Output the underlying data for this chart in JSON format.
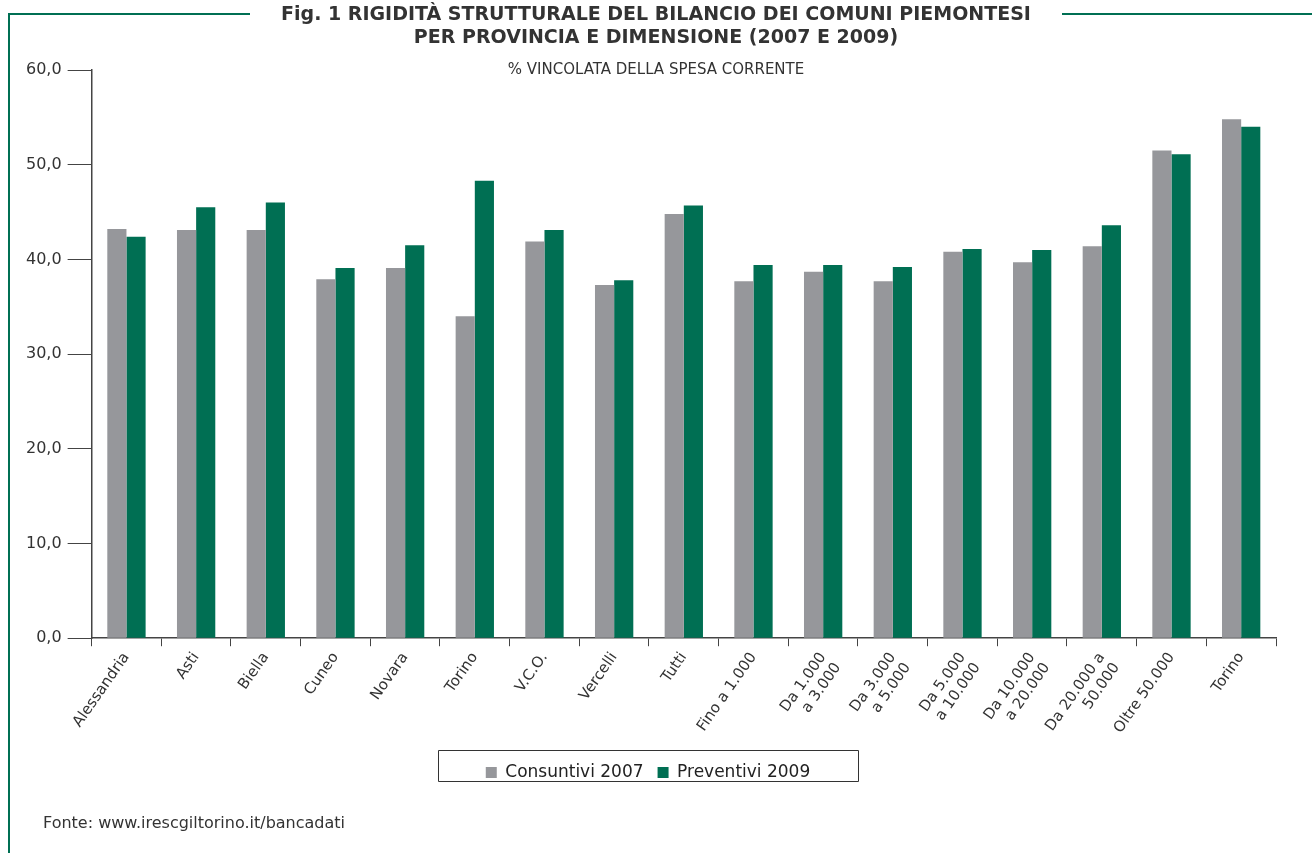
{
  "chart_data": {
    "type": "bar",
    "title": "Fig. 1 RIGIDITÀ STRUTTURALE DEL BILANCIO DEI COMUNI PIEMONTESI\nPER PROVINCIA E DIMENSIONE (2007 E 2009)",
    "subtitle": "% VINCOLATA DELLA SPESA CORRENTE",
    "categories": [
      "Alessandria",
      "Asti",
      "Biella",
      "Cuneo",
      "Novara",
      "Torino",
      "V.C.O.",
      "Vercelli",
      "Tutti",
      "Fino a 1.000",
      "Da 1.000\na 3.000",
      "Da 3.000\na 5.000",
      "Da 5.000\na 10.000",
      "Da 10.000\na 20.000",
      "Da 20.000 a\n50.000",
      "Oltre 50.000",
      "Torino"
    ],
    "series": [
      {
        "name": "Consuntivi 2007",
        "color": "#96979b",
        "values": [
          43.2,
          43.1,
          43.1,
          37.9,
          39.1,
          34.0,
          41.9,
          37.3,
          44.8,
          37.7,
          38.7,
          37.7,
          40.8,
          39.7,
          41.4,
          51.5,
          54.8
        ]
      },
      {
        "name": "Preventivi 2009",
        "color": "#006f53",
        "values": [
          42.4,
          45.5,
          46.0,
          39.1,
          41.5,
          48.3,
          43.1,
          37.8,
          45.7,
          39.4,
          39.4,
          39.2,
          41.1,
          41.0,
          43.6,
          51.1,
          54.0
        ]
      }
    ],
    "ylim": [
      0,
      60
    ],
    "yticks": [
      {
        "value": 0,
        "label": "0,0"
      },
      {
        "value": 10,
        "label": "10,0"
      },
      {
        "value": 20,
        "label": "20,0"
      },
      {
        "value": 30,
        "label": "30,0"
      },
      {
        "value": 40,
        "label": "40,0"
      },
      {
        "value": 50,
        "label": "50,0"
      },
      {
        "value": 60,
        "label": "60,0"
      }
    ],
    "grid": false,
    "legend": "bottom",
    "annotations": [
      "Fonte: www.irescgiltorino.it/bancadati"
    ]
  }
}
